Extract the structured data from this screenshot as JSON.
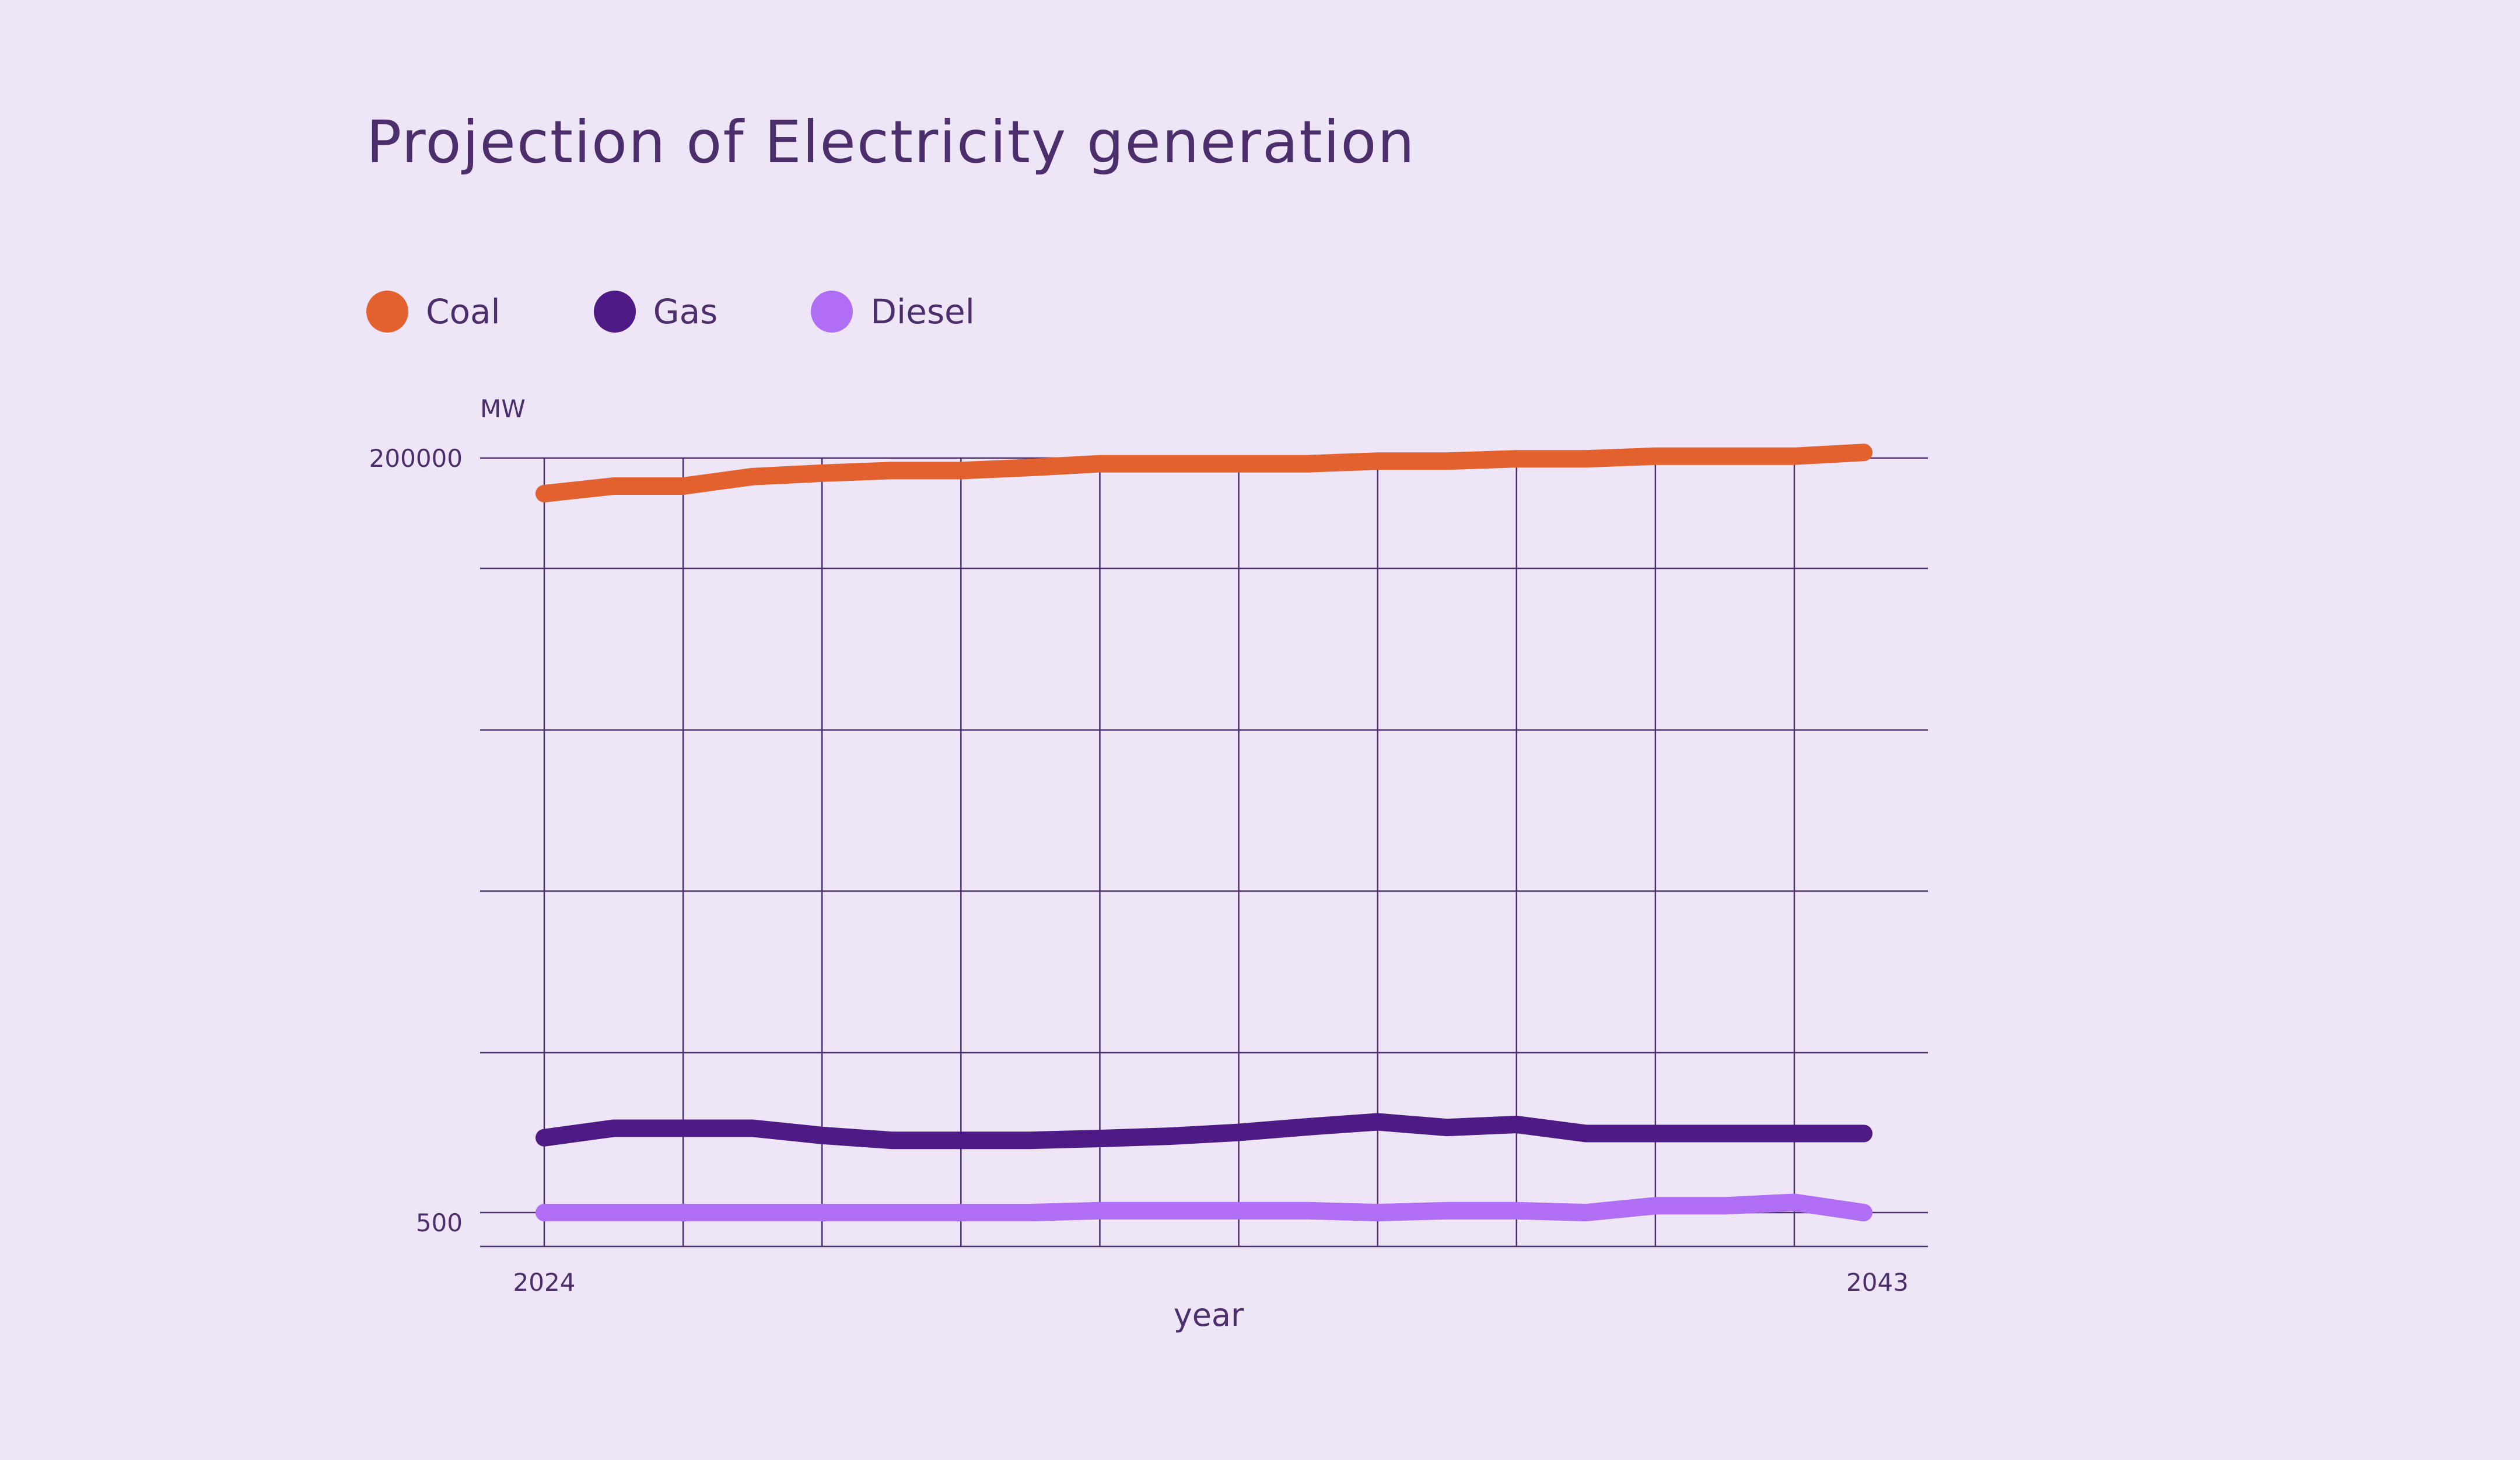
{
  "title": "Projection of Electricity generation",
  "legend": {
    "items": [
      {
        "label": "Coal",
        "color": "#E3602F"
      },
      {
        "label": "Gas",
        "color": "#4E1A86"
      },
      {
        "label": "Diesel",
        "color": "#B06EF4"
      }
    ]
  },
  "colors": {
    "background": "#EEE6F7",
    "grid": "#4B2E6B",
    "text": "#4B2E6B"
  },
  "chart_data": {
    "type": "line",
    "title": "Projection of Electricity generation",
    "xlabel": "year",
    "ylabel": "MW",
    "x_tick_labels": [
      "2024",
      "2043"
    ],
    "y_tick_labels": [
      "200000",
      "500"
    ],
    "x": [
      2024,
      2025,
      2026,
      2027,
      2028,
      2029,
      2030,
      2031,
      2032,
      2033,
      2034,
      2035,
      2036,
      2037,
      2038,
      2039,
      2040,
      2041,
      2042,
      2043
    ],
    "ylim": [
      500,
      200000
    ],
    "grid": true,
    "legend_position": "top-left",
    "series": [
      {
        "name": "Coal",
        "color": "#E3602F",
        "values": [
          190600,
          192600,
          192600,
          195100,
          196000,
          196700,
          196700,
          197500,
          198500,
          198500,
          198500,
          198500,
          199200,
          199200,
          199800,
          199800,
          200500,
          200500,
          200500,
          201500
        ]
      },
      {
        "name": "Gas",
        "color": "#4E1A86",
        "values": [
          20300,
          22800,
          22800,
          22800,
          20900,
          19600,
          19600,
          19600,
          20100,
          20700,
          21700,
          23200,
          24500,
          23000,
          23800,
          21400,
          21400,
          21400,
          21400,
          21400
        ]
      },
      {
        "name": "Diesel",
        "color": "#B06EF4",
        "values": [
          500,
          500,
          500,
          500,
          500,
          500,
          500,
          500,
          1000,
          1000,
          1000,
          1000,
          500,
          1000,
          1000,
          500,
          2300,
          2300,
          3200,
          500
        ]
      }
    ]
  }
}
